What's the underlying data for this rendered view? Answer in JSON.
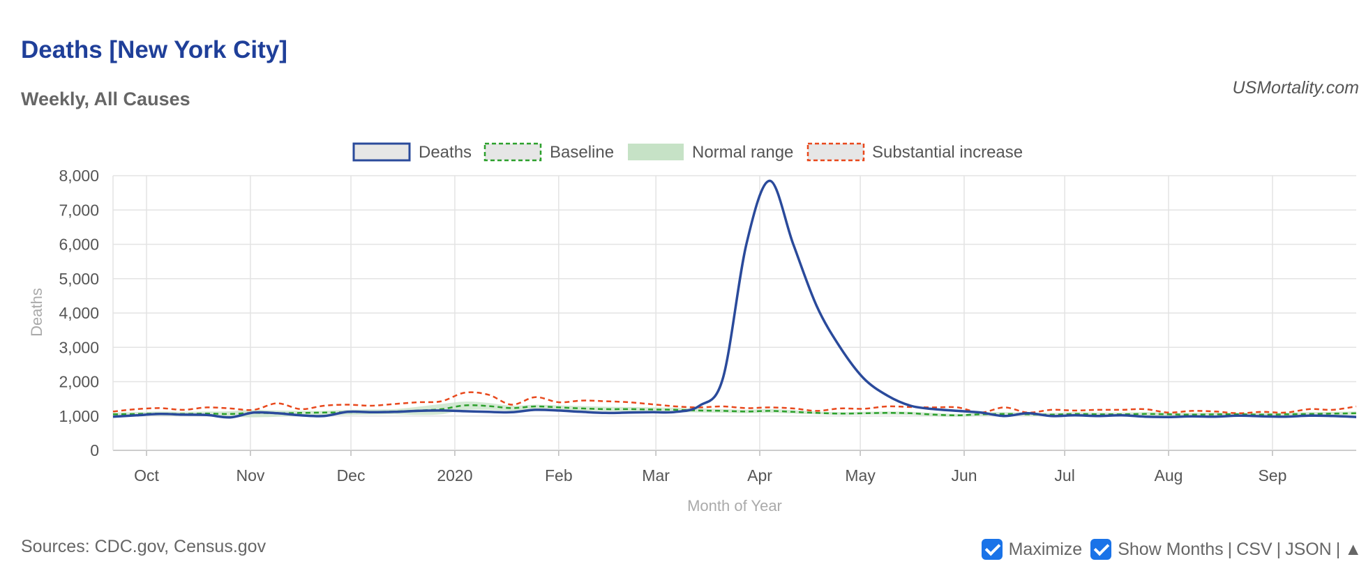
{
  "header": {
    "title": "Deaths [New York City]",
    "subtitle": "Weekly, All Causes",
    "credit": "USMortality.com"
  },
  "footer": {
    "sources": "Sources: CDC.gov, Census.gov",
    "maximize_label": "Maximize",
    "show_months_label": "Show Months",
    "csv_label": "CSV",
    "json_label": "JSON",
    "separator": "|",
    "up_arrow": "▲",
    "maximize_checked": true,
    "show_months_checked": true
  },
  "chart_data": {
    "type": "line",
    "title": "Deaths [New York City]",
    "subtitle": "Weekly, All Causes",
    "xlabel": "Month of Year",
    "ylabel": "Deaths",
    "ylim": [
      0,
      8000
    ],
    "yticks": [
      0,
      1000,
      2000,
      3000,
      4000,
      5000,
      6000,
      7000,
      8000
    ],
    "ytick_labels": [
      "0",
      "1,000",
      "2,000",
      "3,000",
      "4,000",
      "5,000",
      "6,000",
      "7,000",
      "8,000"
    ],
    "xlim": [
      "2019-09-21",
      "2020-09-26"
    ],
    "xticks": [
      {
        "date": "2019-10-01",
        "label": "Oct"
      },
      {
        "date": "2019-11-01",
        "label": "Nov"
      },
      {
        "date": "2019-12-01",
        "label": "Dec"
      },
      {
        "date": "2020-01-01",
        "label": "2020"
      },
      {
        "date": "2020-02-01",
        "label": "Feb"
      },
      {
        "date": "2020-03-01",
        "label": "Mar"
      },
      {
        "date": "2020-04-01",
        "label": "Apr"
      },
      {
        "date": "2020-05-01",
        "label": "May"
      },
      {
        "date": "2020-06-01",
        "label": "Jun"
      },
      {
        "date": "2020-07-01",
        "label": "Jul"
      },
      {
        "date": "2020-08-01",
        "label": "Aug"
      },
      {
        "date": "2020-09-01",
        "label": "Sep"
      }
    ],
    "grid": true,
    "legend_position": "top-center",
    "x": [
      "2019-09-21",
      "2019-09-28",
      "2019-10-05",
      "2019-10-12",
      "2019-10-19",
      "2019-10-26",
      "2019-11-02",
      "2019-11-09",
      "2019-11-16",
      "2019-11-23",
      "2019-11-30",
      "2019-12-07",
      "2019-12-14",
      "2019-12-21",
      "2019-12-28",
      "2020-01-04",
      "2020-01-11",
      "2020-01-18",
      "2020-01-25",
      "2020-02-01",
      "2020-02-08",
      "2020-02-15",
      "2020-02-22",
      "2020-02-29",
      "2020-03-07",
      "2020-03-14",
      "2020-03-21",
      "2020-03-28",
      "2020-04-04",
      "2020-04-11",
      "2020-04-18",
      "2020-04-25",
      "2020-05-02",
      "2020-05-09",
      "2020-05-16",
      "2020-05-23",
      "2020-05-30",
      "2020-06-06",
      "2020-06-13",
      "2020-06-20",
      "2020-06-27",
      "2020-07-04",
      "2020-07-11",
      "2020-07-18",
      "2020-07-25",
      "2020-08-01",
      "2020-08-08",
      "2020-08-15",
      "2020-08-22",
      "2020-08-29",
      "2020-09-05",
      "2020-09-12",
      "2020-09-19",
      "2020-09-26"
    ],
    "series": [
      {
        "name": "Deaths",
        "color": "#2a4a9b",
        "style": "solid",
        "values": [
          980,
          1020,
          1060,
          1040,
          1030,
          960,
          1100,
          1080,
          1020,
          1000,
          1120,
          1110,
          1120,
          1150,
          1160,
          1140,
          1120,
          1110,
          1180,
          1160,
          1120,
          1090,
          1100,
          1110,
          1120,
          1300,
          2100,
          6000,
          7850,
          6000,
          4200,
          3000,
          2100,
          1600,
          1300,
          1200,
          1150,
          1100,
          1000,
          1080,
          1000,
          1020,
          1000,
          1020,
          980,
          970,
          990,
          980,
          1010,
          990,
          980,
          1010,
          1000,
          970
        ]
      },
      {
        "name": "Baseline",
        "color": "#2ca02c",
        "style": "dashed",
        "values": [
          1050,
          1060,
          1070,
          1060,
          1070,
          1060,
          1090,
          1080,
          1090,
          1100,
          1110,
          1120,
          1130,
          1160,
          1200,
          1310,
          1290,
          1230,
          1280,
          1250,
          1220,
          1200,
          1200,
          1190,
          1180,
          1160,
          1150,
          1130,
          1150,
          1120,
          1090,
          1070,
          1080,
          1090,
          1080,
          1040,
          1020,
          1050,
          1060,
          1050,
          1040,
          1060,
          1050,
          1050,
          1060,
          1050,
          1040,
          1050,
          1050,
          1040,
          1050,
          1060,
          1070,
          1080
        ]
      },
      {
        "name": "Normal range",
        "color": "#c6e2c6",
        "style": "band",
        "lower": [
          1000,
          1010,
          1010,
          1000,
          1000,
          980,
          960,
          980,
          1000,
          1010,
          1030,
          1040,
          1050,
          1030,
          1050,
          1180,
          1180,
          1150,
          1200,
          1170,
          1150,
          1140,
          1130,
          1120,
          1110,
          1100,
          1090,
          1080,
          1090,
          1070,
          1050,
          1030,
          1040,
          1040,
          1030,
          990,
          980,
          1000,
          1010,
          1000,
          990,
          1010,
          1000,
          1000,
          1010,
          1000,
          990,
          1000,
          1000,
          990,
          1000,
          1010,
          1020,
          1030
        ],
        "upper": [
          1100,
          1110,
          1130,
          1120,
          1130,
          1140,
          1180,
          1160,
          1150,
          1150,
          1180,
          1190,
          1200,
          1270,
          1350,
          1420,
          1380,
          1300,
          1330,
          1310,
          1290,
          1270,
          1260,
          1250,
          1240,
          1220,
          1200,
          1180,
          1200,
          1170,
          1130,
          1110,
          1120,
          1130,
          1120,
          1090,
          1060,
          1100,
          1110,
          1100,
          1090,
          1110,
          1100,
          1100,
          1110,
          1100,
          1090,
          1100,
          1100,
          1090,
          1100,
          1110,
          1120,
          1130
        ]
      },
      {
        "name": "Substantial increase",
        "color": "#e8481c",
        "style": "dashed",
        "values": [
          1130,
          1200,
          1230,
          1180,
          1250,
          1220,
          1180,
          1370,
          1200,
          1300,
          1330,
          1300,
          1350,
          1400,
          1430,
          1680,
          1620,
          1330,
          1550,
          1400,
          1450,
          1430,
          1400,
          1340,
          1280,
          1250,
          1280,
          1230,
          1250,
          1220,
          1150,
          1220,
          1210,
          1280,
          1260,
          1250,
          1250,
          1100,
          1250,
          1100,
          1180,
          1160,
          1180,
          1180,
          1200,
          1100,
          1150,
          1130,
          1080,
          1120,
          1100,
          1200,
          1180,
          1280
        ]
      }
    ]
  }
}
